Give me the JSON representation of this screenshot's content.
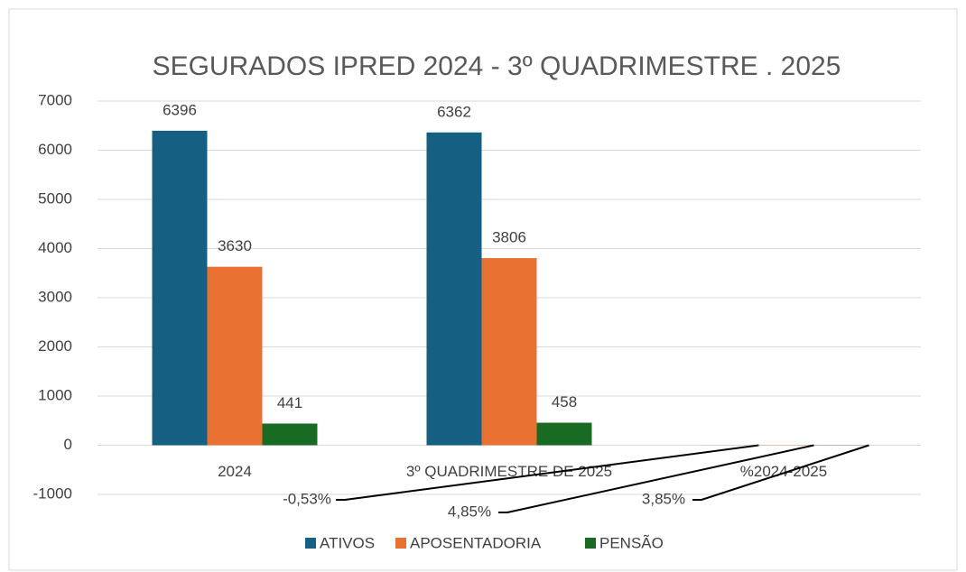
{
  "chart_data": {
    "type": "bar",
    "title": "SEGURADOS IPRED 2024 - 3º  QUADRIMESTRE . 2025",
    "categories": [
      "2024",
      "3º QUADRIMESTRE DE 2025",
      "%2024-2025"
    ],
    "series": [
      {
        "name": "ATIVOS",
        "color": "#156082",
        "values": [
          6396,
          6362,
          -0.53
        ],
        "value_labels": [
          null,
          null,
          "-0,53%"
        ]
      },
      {
        "name": "APOSENTADORIA",
        "color": "#e97132",
        "values": [
          3630,
          3806,
          4.85
        ],
        "value_labels": [
          null,
          null,
          "4,85%"
        ]
      },
      {
        "name": "PENSÃO",
        "color": "#196b24",
        "values": [
          441,
          458,
          3.85
        ],
        "value_labels": [
          null,
          null,
          "3,85%"
        ]
      }
    ],
    "ylim": [
      -1000,
      7000
    ],
    "yticks": [
      -1000,
      0,
      1000,
      2000,
      3000,
      4000,
      5000,
      6000,
      7000
    ],
    "grid": true,
    "legend": "bottom"
  }
}
